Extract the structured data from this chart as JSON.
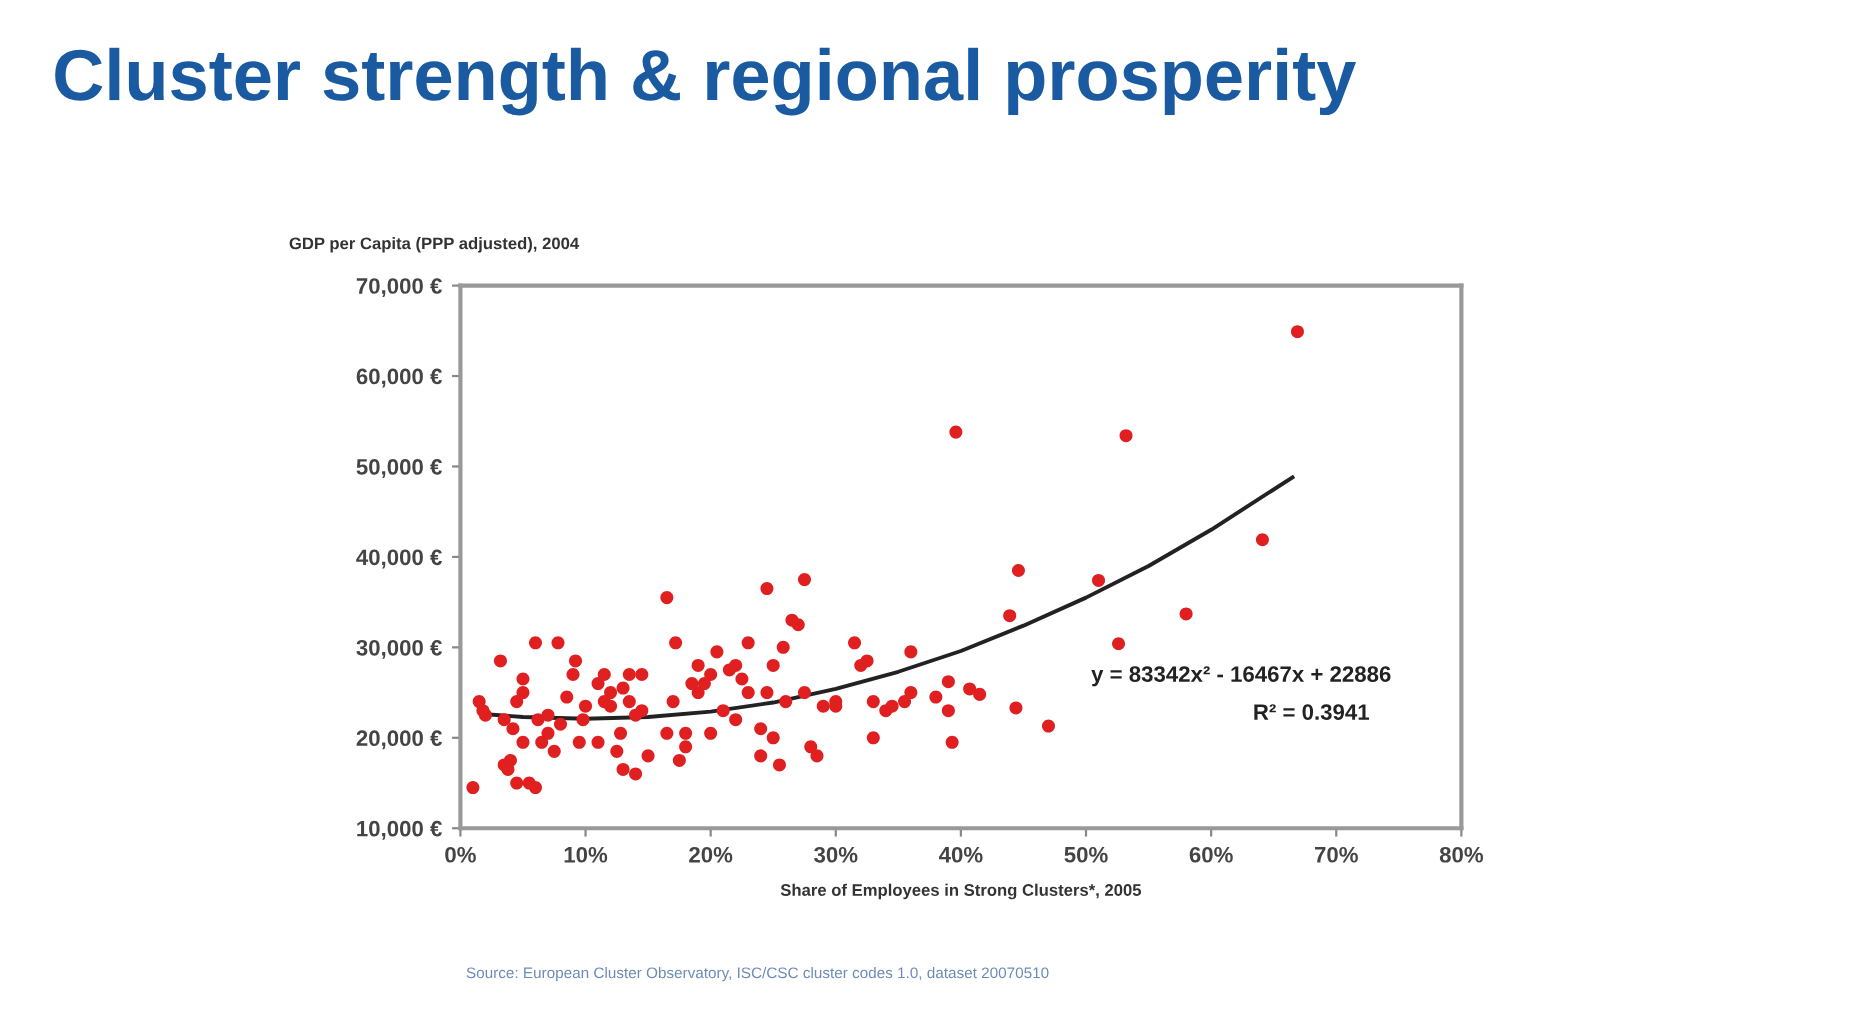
{
  "chart_data": {
    "type": "scatter",
    "title": "Cluster strength & regional prosperity",
    "xlabel": "Share of Employees in Strong Clusters*, 2005",
    "ylabel": "GDP per Capita (PPP adjusted), 2004",
    "xlim": [
      0,
      80
    ],
    "xticks": [
      {
        "value": 0,
        "label": "0%"
      },
      {
        "value": 10,
        "label": "10%"
      },
      {
        "value": 20,
        "label": "20%"
      },
      {
        "value": 30,
        "label": "30%"
      },
      {
        "value": 40,
        "label": "40%"
      },
      {
        "value": 50,
        "label": "50%"
      },
      {
        "value": 60,
        "label": "60%"
      },
      {
        "value": 70,
        "label": "70%"
      },
      {
        "value": 80,
        "label": "80%"
      }
    ],
    "ylim": [
      10000,
      70000
    ],
    "yticks": [
      {
        "value": 10000,
        "label": "10,000 €"
      },
      {
        "value": 20000,
        "label": "20,000 €"
      },
      {
        "value": 30000,
        "label": "30,000 €"
      },
      {
        "value": 40000,
        "label": "40,000 €"
      },
      {
        "value": 50000,
        "label": "50,000 €"
      },
      {
        "value": 60000,
        "label": "60,000 €"
      },
      {
        "value": 70000,
        "label": "70,000 €"
      }
    ],
    "grid": false,
    "legend": false,
    "marker": "circle",
    "series": [
      {
        "color": "#e02020",
        "x": [
          1.0,
          1.5,
          1.8,
          2,
          3.2,
          3.5,
          3.5,
          3.8,
          4,
          4.2,
          4.5,
          4.5,
          5,
          5,
          5,
          5.5,
          6,
          6,
          6.2,
          6.5,
          7,
          7,
          7.5,
          7.8,
          8,
          8.5,
          9,
          9.2,
          9.5,
          9.8,
          10,
          11,
          11,
          11.5,
          11.5,
          12,
          12,
          12.5,
          12.8,
          13,
          13,
          13.5,
          13.5,
          14,
          14,
          14.5,
          14.5,
          15,
          16.5,
          16.5,
          17,
          17.2,
          17.5,
          18,
          18,
          18.5,
          19,
          19,
          19.5,
          20,
          20,
          20.5,
          21,
          21.5,
          22,
          22,
          22.5,
          23,
          23,
          24,
          24,
          24.5,
          24.5,
          25,
          25,
          25.5,
          25.8,
          26,
          26.5,
          27,
          27.5,
          27.5,
          28,
          28.5,
          29,
          30,
          30,
          31.5,
          32,
          32.5,
          33,
          33,
          34,
          34.5,
          35.5,
          36,
          36,
          38,
          39,
          39.3,
          39,
          39.6,
          40.7,
          41.5,
          43.9,
          44.4,
          44.6,
          47,
          51,
          52.6,
          53.2,
          58,
          64.1,
          66.9
        ],
        "values": [
          14500,
          24000,
          23000,
          22500,
          28500,
          22000,
          17000,
          16500,
          17500,
          21000,
          15000,
          24000,
          25000,
          26500,
          19500,
          15000,
          14500,
          30500,
          22000,
          19500,
          20500,
          22500,
          18500,
          30500,
          21500,
          24500,
          27000,
          28500,
          19500,
          22000,
          23500,
          26000,
          19500,
          27000,
          24000,
          23500,
          25000,
          18500,
          20500,
          25500,
          16500,
          27000,
          24000,
          16000,
          22500,
          23000,
          27000,
          18000,
          35500,
          20500,
          24000,
          30500,
          17500,
          20500,
          19000,
          26000,
          28000,
          25000,
          26000,
          27000,
          20500,
          29500,
          23000,
          27500,
          28000,
          22000,
          26500,
          25000,
          30500,
          18000,
          21000,
          36500,
          25000,
          28000,
          20000,
          17000,
          30000,
          24000,
          33000,
          32500,
          37500,
          25000,
          19000,
          18000,
          23500,
          24000,
          23500,
          30500,
          28000,
          28500,
          20000,
          24000,
          23000,
          23500,
          24000,
          29500,
          25000,
          24500,
          26200,
          19500,
          23000,
          53800,
          25400,
          24800,
          33500,
          23300,
          38500,
          21300,
          37400,
          30400,
          53400,
          33700,
          41900,
          64900
        ]
      },
      {
        "type": "line",
        "color": "#222222",
        "marker": "none",
        "line_style": "solid",
        "x": [
          2,
          5,
          10,
          15,
          20,
          25,
          30,
          35,
          40,
          45,
          50,
          55,
          60,
          66.5
        ],
        "values": [
          22600,
          22300,
          22100,
          22300,
          22900,
          23900,
          25400,
          27300,
          29600,
          32400,
          35500,
          39000,
          43000,
          48800
        ]
      }
    ],
    "annotations": [
      "y = 83342x² - 16467x + 22886",
      "R² = 0.3941",
      "Source: European Cluster Observatory, ISC/CSC cluster codes 1.0, dataset 20070510"
    ]
  }
}
